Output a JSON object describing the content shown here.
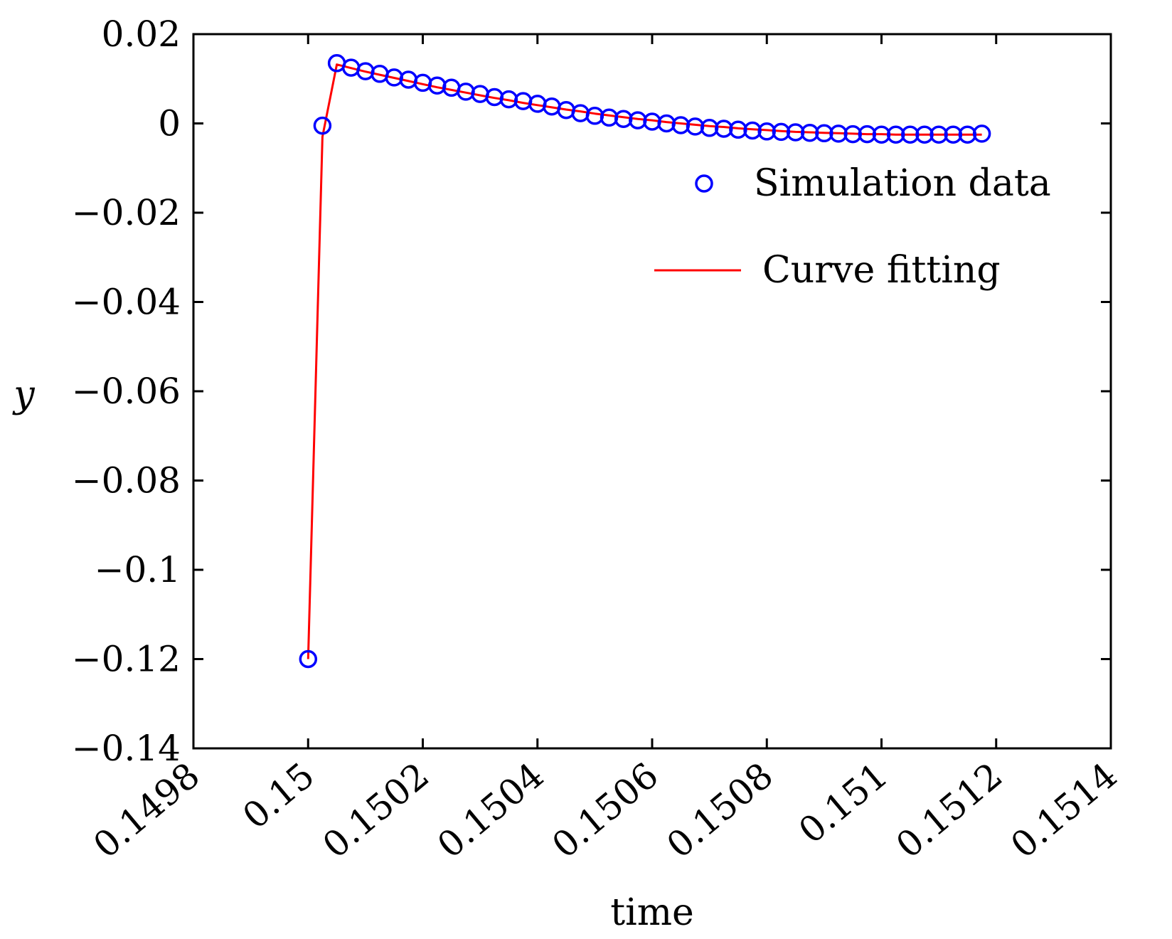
{
  "chart_data": {
    "type": "line",
    "title": "",
    "xlabel": "time",
    "ylabel": "y",
    "xlim": [
      0.1498,
      0.1514
    ],
    "ylim": [
      -0.14,
      0.02
    ],
    "xticks": [
      0.1498,
      0.15,
      0.1502,
      0.1504,
      0.1506,
      0.1508,
      0.151,
      0.1512,
      0.1514
    ],
    "xtick_labels": [
      "0.1498",
      "0.15",
      "0.1502",
      "0.1504",
      "0.1506",
      "0.1508",
      "0.151",
      "0.1512",
      "0.1514"
    ],
    "yticks": [
      0.02,
      0,
      -0.02,
      -0.04,
      -0.06,
      -0.08,
      -0.1,
      -0.12,
      -0.14
    ],
    "ytick_labels": [
      "0.02",
      "0",
      "−0.02",
      "−0.04",
      "−0.06",
      "−0.08",
      "−0.1",
      "−0.12",
      "−0.14"
    ],
    "grid": false,
    "legend_position": "top-right",
    "series": [
      {
        "name": "Simulation data",
        "kind": "scatter",
        "marker": "circle-open",
        "color": "#0000ff",
        "x": [
          0.15,
          0.150025,
          0.15005,
          0.150075,
          0.1501,
          0.150125,
          0.15015,
          0.150175,
          0.1502,
          0.150225,
          0.15025,
          0.150275,
          0.1503,
          0.150325,
          0.15035,
          0.150375,
          0.1504,
          0.150425,
          0.15045,
          0.150475,
          0.1505,
          0.150525,
          0.15055,
          0.150575,
          0.1506,
          0.150625,
          0.15065,
          0.150675,
          0.1507,
          0.150725,
          0.15075,
          0.150775,
          0.1508,
          0.150825,
          0.15085,
          0.150875,
          0.1509,
          0.150925,
          0.15095,
          0.150975,
          0.151,
          0.151025,
          0.15105,
          0.151075,
          0.1511,
          0.151125,
          0.15115,
          0.151175
        ],
        "y": [
          -0.12,
          -0.0005,
          0.0135,
          0.0125,
          0.0117,
          0.0111,
          0.0103,
          0.0098,
          0.0091,
          0.0085,
          0.008,
          0.0071,
          0.0066,
          0.0059,
          0.0054,
          0.005,
          0.0044,
          0.0038,
          0.003,
          0.0023,
          0.0017,
          0.0013,
          0.001,
          0.0007,
          0.0004,
          0.0,
          -0.0004,
          -0.0007,
          -0.001,
          -0.0012,
          -0.0014,
          -0.0016,
          -0.0018,
          -0.0019,
          -0.002,
          -0.0021,
          -0.0022,
          -0.0023,
          -0.0024,
          -0.0024,
          -0.0025,
          -0.0025,
          -0.0025,
          -0.0025,
          -0.0025,
          -0.0025,
          -0.0025,
          -0.0023
        ]
      },
      {
        "name": "Curve fitting",
        "kind": "line",
        "color": "#ff0000",
        "x": [
          0.15,
          0.150025,
          0.15005,
          0.150075,
          0.1501,
          0.150125,
          0.15015,
          0.150175,
          0.1502,
          0.150225,
          0.15025,
          0.150275,
          0.1503,
          0.150325,
          0.15035,
          0.150375,
          0.1504,
          0.150425,
          0.15045,
          0.150475,
          0.1505,
          0.150525,
          0.15055,
          0.150575,
          0.1506,
          0.150625,
          0.15065,
          0.150675,
          0.1507,
          0.150725,
          0.15075,
          0.150775,
          0.1508,
          0.150825,
          0.15085,
          0.150875,
          0.1509,
          0.150925,
          0.15095,
          0.150975,
          0.151,
          0.151025,
          0.15105,
          0.151075,
          0.1511,
          0.151125,
          0.15115,
          0.151175
        ],
        "y": [
          -0.12,
          -0.003,
          0.0132,
          0.0124,
          0.0116,
          0.0109,
          0.0102,
          0.0095,
          0.0088,
          0.0081,
          0.0075,
          0.0069,
          0.0063,
          0.0057,
          0.0052,
          0.0046,
          0.0041,
          0.0036,
          0.0031,
          0.0027,
          0.0022,
          0.0018,
          0.0014,
          0.001,
          0.0007,
          0.0003,
          0.0,
          -0.0003,
          -0.0006,
          -0.0008,
          -0.0011,
          -0.0013,
          -0.0015,
          -0.0017,
          -0.0019,
          -0.002,
          -0.0021,
          -0.0022,
          -0.0023,
          -0.0024,
          -0.0024,
          -0.0025,
          -0.0025,
          -0.0025,
          -0.0025,
          -0.0025,
          -0.0025,
          -0.0025
        ]
      }
    ]
  }
}
